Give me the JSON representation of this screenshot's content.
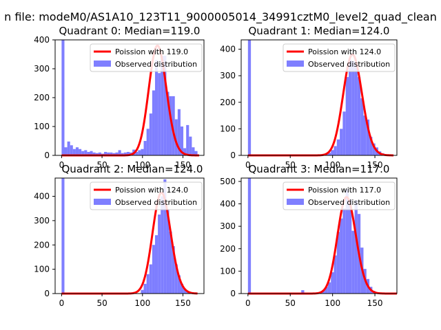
{
  "suptitle": "n file: modeM0/AS1A10_123T11_9000005014_34991cztM0_level2_quad_clean",
  "colors": {
    "poisson": "#ff0000",
    "observed": "#0000ff",
    "observed_alpha": 0.5
  },
  "chart_data": [
    {
      "type": "bar",
      "title": "Quadrant 0: Median=119.0",
      "xlim": [
        -8,
        176
      ],
      "ylim": [
        0,
        400
      ],
      "xticks": [
        0,
        50,
        100,
        150
      ],
      "yticks": [
        0,
        100,
        200,
        300,
        400
      ],
      "legend": {
        "position": "top-right",
        "entries": [
          "Poission with 119.0",
          "Observed distribution"
        ]
      },
      "hist": {
        "bin_width": 3.5,
        "bins": [
          [
            0,
            400
          ],
          [
            3.5,
            28
          ],
          [
            7,
            48
          ],
          [
            10.5,
            35
          ],
          [
            14,
            22
          ],
          [
            17.5,
            28
          ],
          [
            21,
            22
          ],
          [
            24.5,
            15
          ],
          [
            28,
            18
          ],
          [
            31.5,
            12
          ],
          [
            35,
            15
          ],
          [
            38.5,
            10
          ],
          [
            42,
            8
          ],
          [
            45.5,
            10
          ],
          [
            49,
            6
          ],
          [
            52.5,
            12
          ],
          [
            56,
            10
          ],
          [
            59.5,
            10
          ],
          [
            63,
            8
          ],
          [
            66.5,
            10
          ],
          [
            70,
            18
          ],
          [
            73.5,
            8
          ],
          [
            77,
            10
          ],
          [
            80.5,
            12
          ],
          [
            84,
            10
          ],
          [
            87.5,
            20
          ],
          [
            91,
            12
          ],
          [
            94.5,
            18
          ],
          [
            98,
            22
          ],
          [
            101.5,
            50
          ],
          [
            105,
            92
          ],
          [
            108.5,
            145
          ],
          [
            112,
            225
          ],
          [
            115.5,
            330
          ],
          [
            119,
            285
          ],
          [
            122.5,
            345
          ],
          [
            126,
            345
          ],
          [
            129.5,
            220
          ],
          [
            133,
            205
          ],
          [
            136.5,
            205
          ],
          [
            140,
            125
          ],
          [
            143.5,
            160
          ],
          [
            147,
            100
          ],
          [
            150.5,
            25
          ],
          [
            154,
            105
          ],
          [
            157.5,
            65
          ],
          [
            161,
            28
          ],
          [
            164.5,
            15
          ]
        ]
      },
      "poisson": {
        "mean": 119.0,
        "scale": 380,
        "x_range": [
          0,
          170
        ]
      }
    },
    {
      "type": "bar",
      "title": "Quadrant 1: Median=124.0",
      "xlim": [
        -8,
        176
      ],
      "ylim": [
        0,
        435
      ],
      "xticks": [
        0,
        50,
        100,
        150
      ],
      "yticks": [
        0,
        100,
        200,
        300,
        400
      ],
      "legend": {
        "position": "top-right",
        "entries": [
          "Poission with 124.0",
          "Observed distribution"
        ]
      },
      "hist": {
        "bin_width": 3.5,
        "bins": [
          [
            0,
            435
          ],
          [
            91,
            5
          ],
          [
            94.5,
            10
          ],
          [
            98,
            20
          ],
          [
            101.5,
            35
          ],
          [
            105,
            60
          ],
          [
            108.5,
            100
          ],
          [
            112,
            165
          ],
          [
            115.5,
            295
          ],
          [
            119,
            360
          ],
          [
            122.5,
            355
          ],
          [
            126,
            345
          ],
          [
            129.5,
            295
          ],
          [
            133,
            215
          ],
          [
            136.5,
            150
          ],
          [
            140,
            135
          ],
          [
            143.5,
            70
          ],
          [
            147,
            45
          ],
          [
            150.5,
            30
          ],
          [
            154,
            15
          ],
          [
            157.5,
            8
          ]
        ]
      },
      "poisson": {
        "mean": 124.0,
        "scale": 380,
        "x_range": [
          0,
          172
        ]
      }
    },
    {
      "type": "bar",
      "title": "Quadrant 2: Median=124.0",
      "xlim": [
        -8,
        176
      ],
      "ylim": [
        0,
        475
      ],
      "xticks": [
        0,
        50,
        100,
        150
      ],
      "yticks": [
        0,
        100,
        200,
        300,
        400
      ],
      "legend": {
        "position": "top-right",
        "entries": [
          "Poission with 124.0",
          "Observed distribution"
        ]
      },
      "hist": {
        "bin_width": 3.5,
        "bins": [
          [
            0,
            475
          ],
          [
            98,
            15
          ],
          [
            101.5,
            40
          ],
          [
            105,
            80
          ],
          [
            108.5,
            120
          ],
          [
            112,
            200
          ],
          [
            115.5,
            240
          ],
          [
            119,
            325
          ],
          [
            122.5,
            400
          ],
          [
            126,
            470
          ],
          [
            129.5,
            345
          ],
          [
            133,
            255
          ],
          [
            136.5,
            195
          ],
          [
            140,
            120
          ],
          [
            143.5,
            75
          ],
          [
            147,
            40
          ],
          [
            150.5,
            20
          ],
          [
            154,
            10
          ]
        ]
      },
      "poisson": {
        "mean": 124.0,
        "scale": 415,
        "x_range": [
          0,
          168
        ]
      }
    },
    {
      "type": "bar",
      "title": "Quadrant 3: Median=117.0",
      "xlim": [
        -8,
        176
      ],
      "ylim": [
        0,
        515
      ],
      "xticks": [
        0,
        50,
        100,
        150
      ],
      "yticks": [
        0,
        100,
        200,
        300,
        400,
        500
      ],
      "legend": {
        "position": "top-right",
        "entries": [
          "Poission with 117.0",
          "Observed distribution"
        ]
      },
      "hist": {
        "bin_width": 3.5,
        "bins": [
          [
            0,
            515
          ],
          [
            63,
            15
          ],
          [
            87.5,
            15
          ],
          [
            91,
            30
          ],
          [
            94.5,
            50
          ],
          [
            98,
            95
          ],
          [
            101.5,
            170
          ],
          [
            105,
            275
          ],
          [
            108.5,
            335
          ],
          [
            112,
            380
          ],
          [
            115.5,
            465
          ],
          [
            119,
            420
          ],
          [
            122.5,
            280
          ],
          [
            126,
            415
          ],
          [
            129.5,
            355
          ],
          [
            133,
            205
          ],
          [
            136.5,
            110
          ],
          [
            140,
            65
          ],
          [
            143.5,
            30
          ],
          [
            147,
            12
          ]
        ]
      },
      "poisson": {
        "mean": 117.0,
        "scale": 430,
        "x_range": [
          0,
          176
        ]
      }
    }
  ]
}
